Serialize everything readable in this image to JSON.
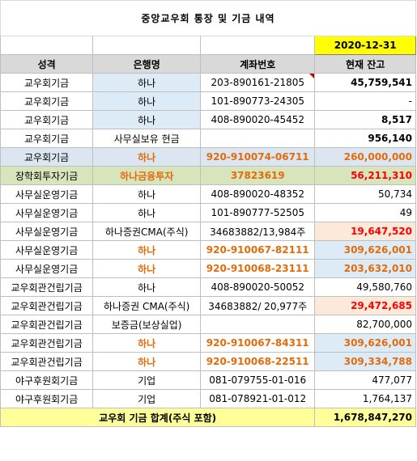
{
  "title": "중앙교우회 통장 및 기금 내역",
  "date": "2020-12-31",
  "headers": [
    "성격",
    "은행명",
    "계좌번호",
    "현재 잔고"
  ],
  "rows": [
    {
      "category": "교우회기금",
      "bank": "하나",
      "account": "203-890161-21805",
      "balance": "45,759,541"
    },
    {
      "category": "교우회기금",
      "bank": "하나",
      "account": "101-890773-24305",
      "balance": "-"
    },
    {
      "category": "교우회기금",
      "bank": "하나",
      "account": "408-890020-45452",
      "balance": "8,517"
    },
    {
      "category": "교우회기금",
      "bank": "사무실보유 현금",
      "account": "",
      "balance": "956,140"
    },
    {
      "category": "교우회기금",
      "bank": "하나",
      "account": "920-910074-06711",
      "balance": "260,000,000"
    },
    {
      "category": "장학회투자기금",
      "bank": "하나금융투자",
      "account": "37823619",
      "balance": "56,211,310"
    },
    {
      "category": "사무실운영기금",
      "bank": "하나",
      "account": "408-890020-48352",
      "balance": "50,734"
    },
    {
      "category": "사무실운영기금",
      "bank": "하나",
      "account": "101-890777-52505",
      "balance": "49"
    },
    {
      "category": "사무실운영기금",
      "bank": "하나증권CMA(주식)",
      "account": "34683882/13,984주",
      "balance": "19,647,520"
    },
    {
      "category": "사무실운영기금",
      "bank": "하나",
      "account": "920-910067-82111",
      "balance": "309,626,001"
    },
    {
      "category": "사무실운영기금",
      "bank": "하나",
      "account": "920-910068-23111",
      "balance": "203,632,010"
    },
    {
      "category": "교우회관건립기금",
      "bank": "하나",
      "account": "408-890020-50052",
      "balance": "49,580,760"
    },
    {
      "category": "교우회관건립기금",
      "bank": "하나증권 CMA(주식)",
      "account": "34683882/ 20,977주",
      "balance": "29,472,685"
    },
    {
      "category": "교우회관건립기금",
      "bank": "보증금(보상실업)",
      "account": "",
      "balance": "82,700,000"
    },
    {
      "category": "교우회관건립기금",
      "bank": "하나",
      "account": "920-910067-84311",
      "balance": "309,626,001"
    },
    {
      "category": "교우회관건립기금",
      "bank": "하나",
      "account": "920-910068-22511",
      "balance": "309,334,788"
    },
    {
      "category": "야구후원회기금",
      "bank": "기업",
      "account": "081-079755-01-016",
      "balance": "477,077"
    },
    {
      "category": "야구후원회기금",
      "bank": "기업",
      "account": "081-078921-01-012",
      "balance": "1,764,137"
    }
  ],
  "total": {
    "label": "교우회 기금 합계(주식 포함)",
    "value": "1,678,847,270"
  }
}
